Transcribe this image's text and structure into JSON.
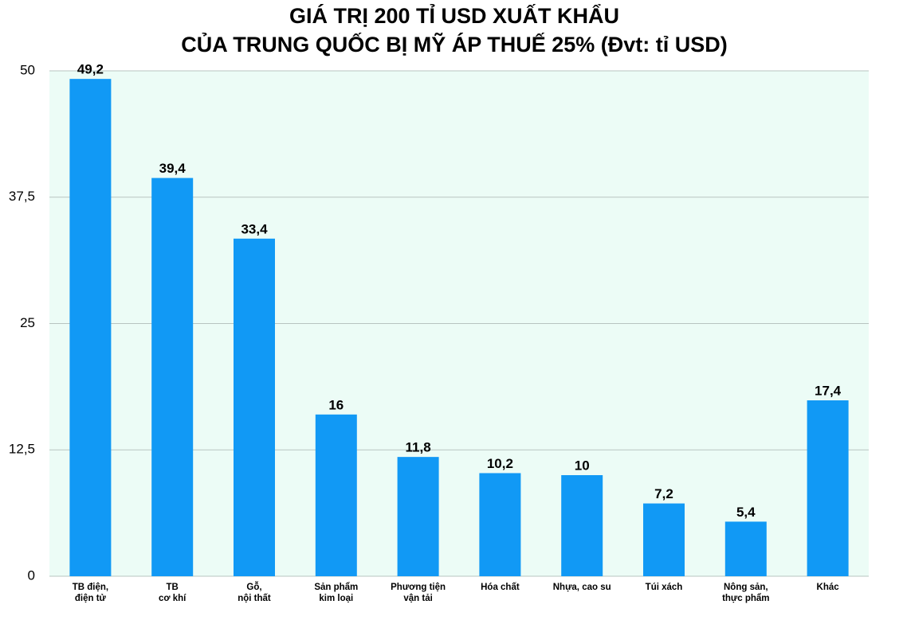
{
  "chart_data": {
    "type": "bar",
    "title": [
      "GIÁ TRỊ 200 TỈ USD XUẤT KHẨU",
      "CỦA TRUNG QUỐC BỊ MỸ ÁP THUẾ 25% (Đvt: tỉ USD)"
    ],
    "categories": [
      [
        "TB điện,",
        "điện tử"
      ],
      [
        "TB",
        "cơ khí"
      ],
      [
        "Gỗ,",
        "nội thất"
      ],
      [
        "Sản phẩm",
        "kim loại"
      ],
      [
        "Phương tiện",
        "vận tải"
      ],
      [
        "Hóa chất"
      ],
      [
        "Nhựa, cao su"
      ],
      [
        "Túi xách"
      ],
      [
        "Nông sản,",
        "thực phẩm"
      ],
      [
        "Khác"
      ]
    ],
    "values": [
      49.2,
      39.4,
      33.4,
      16,
      11.8,
      10.2,
      10,
      7.2,
      5.4,
      17.4
    ],
    "value_labels": [
      "49,2",
      "39,4",
      "33,4",
      "16",
      "11,8",
      "10,2",
      "10",
      "7,2",
      "5,4",
      "17,4"
    ],
    "color": "#1199f5",
    "ylim": [
      0,
      50
    ],
    "yticks": [
      0,
      {
        "value": 12.5,
        "label": "12,5"
      },
      25,
      {
        "value": 37.5,
        "label": "37,5"
      },
      50
    ],
    "grid": true
  }
}
